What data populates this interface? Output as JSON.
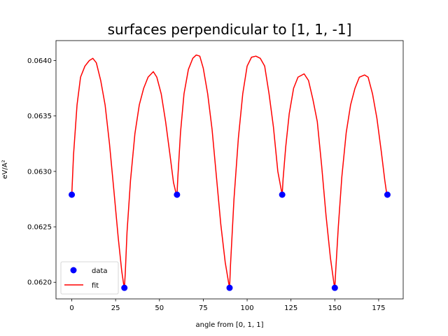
{
  "chart_data": {
    "type": "line",
    "title": "surfaces perpendicular to [1, 1, -1]",
    "xlabel": "angle from [0, 1, 1]",
    "ylabel": "eV/A²",
    "xlim": [
      -9,
      189
    ],
    "ylim": [
      0.06185,
      0.06418
    ],
    "xticks": [
      0,
      25,
      50,
      75,
      100,
      125,
      150,
      175
    ],
    "yticks": [
      0.062,
      0.0625,
      0.063,
      0.0635,
      0.064
    ],
    "ytick_labels": [
      "0.0620",
      "0.0625",
      "0.0630",
      "0.0635",
      "0.0640"
    ],
    "grid": false,
    "legend_position": "lower-left",
    "series": [
      {
        "name": "data",
        "style": "markers",
        "color": "#0000ff",
        "x": [
          0,
          30,
          60,
          90,
          120,
          150,
          180
        ],
        "y": [
          0.06279,
          0.06195,
          0.06279,
          0.06195,
          0.06279,
          0.06195,
          0.06279
        ]
      },
      {
        "name": "fit",
        "style": "line",
        "color": "#ff0000",
        "x": [
          0,
          1,
          3,
          5,
          7.5,
          10,
          12,
          14,
          16.5,
          19,
          21.5,
          24,
          26.5,
          28.5,
          29.5,
          30,
          30.5,
          31.5,
          33.5,
          36,
          38.5,
          41,
          43.5,
          46.5,
          48.5,
          51,
          53.5,
          56,
          58,
          59.5,
          60,
          60.5,
          62,
          64,
          66.5,
          69,
          71,
          73,
          75,
          77.5,
          80,
          82.5,
          85,
          87.5,
          89.5,
          90,
          90.5,
          92.5,
          95,
          97.5,
          100,
          102.5,
          105,
          107.5,
          110,
          112.5,
          115,
          117.5,
          119.5,
          120,
          120.5,
          122,
          124,
          126.5,
          129,
          132.5,
          135,
          137.5,
          140,
          142.5,
          145,
          147.5,
          149.5,
          150,
          150.5,
          152,
          154,
          156.5,
          159,
          161.5,
          164,
          167,
          169,
          171.5,
          174,
          176.5,
          178.5,
          179.5,
          180
        ],
        "y": [
          0.06279,
          0.06315,
          0.0636,
          0.06385,
          0.06395,
          0.064,
          0.06402,
          0.06398,
          0.06382,
          0.0636,
          0.06325,
          0.06283,
          0.0624,
          0.0621,
          0.06199,
          0.06195,
          0.06208,
          0.06245,
          0.06292,
          0.06334,
          0.0636,
          0.06375,
          0.06385,
          0.0639,
          0.06385,
          0.0637,
          0.06345,
          0.06315,
          0.0629,
          0.0628,
          0.06279,
          0.06295,
          0.06335,
          0.0637,
          0.06392,
          0.06402,
          0.06405,
          0.06404,
          0.06393,
          0.0637,
          0.06338,
          0.06295,
          0.06252,
          0.06218,
          0.06199,
          0.06195,
          0.06215,
          0.06275,
          0.0633,
          0.0637,
          0.06395,
          0.06403,
          0.06404,
          0.06402,
          0.06395,
          0.0637,
          0.0634,
          0.063,
          0.06283,
          0.06279,
          0.06293,
          0.06322,
          0.06352,
          0.06375,
          0.06385,
          0.06388,
          0.06382,
          0.06365,
          0.06345,
          0.06305,
          0.0626,
          0.06222,
          0.06199,
          0.06195,
          0.0621,
          0.0625,
          0.06295,
          0.06335,
          0.0636,
          0.06375,
          0.06385,
          0.06387,
          0.06385,
          0.0637,
          0.06348,
          0.06318,
          0.06292,
          0.06281,
          0.06279
        ]
      }
    ]
  }
}
